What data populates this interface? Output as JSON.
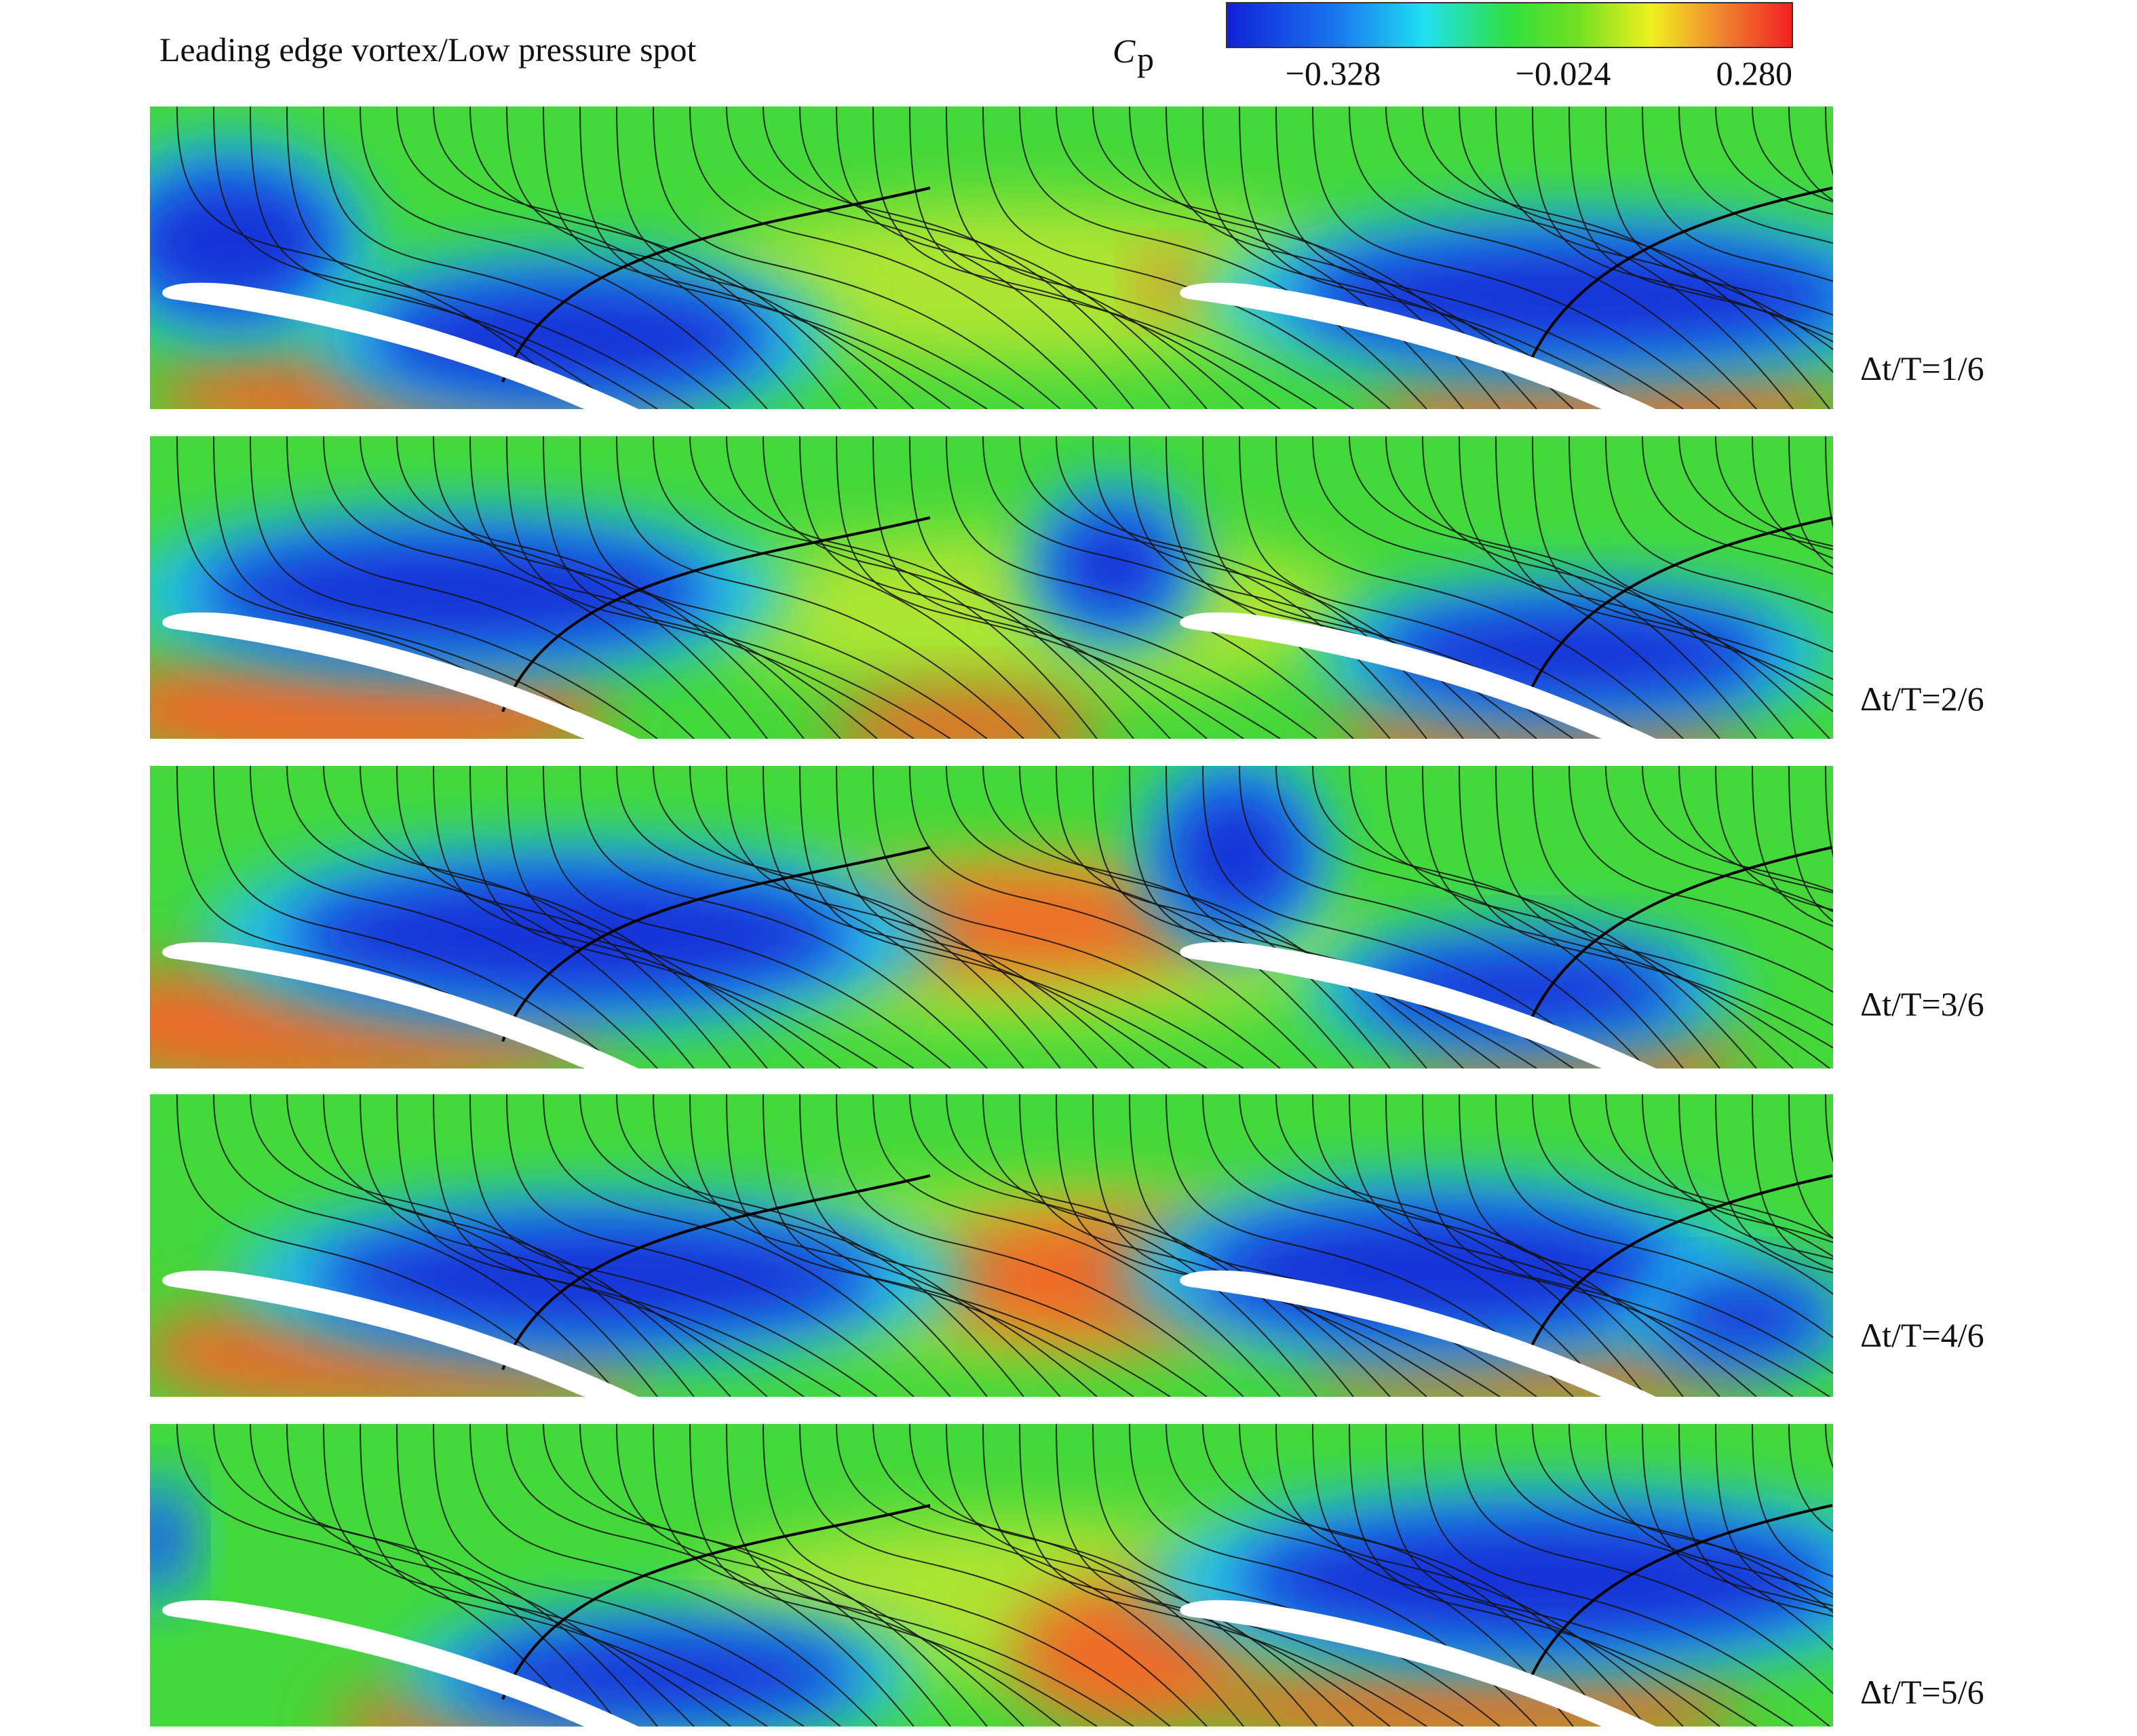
{
  "header": {
    "annotation": "Leading edge vortex/Low pressure spot"
  },
  "colorbar": {
    "symbol": "C",
    "subscript": "p",
    "ticks": [
      "−0.328",
      "−0.024",
      "0.280"
    ]
  },
  "panels": [
    {
      "label": "Δt/T=1/6"
    },
    {
      "label": "Δt/T=2/6"
    },
    {
      "label": "Δt/T=3/6"
    },
    {
      "label": "Δt/T=4/6"
    },
    {
      "label": "Δt/T=5/6"
    }
  ]
}
